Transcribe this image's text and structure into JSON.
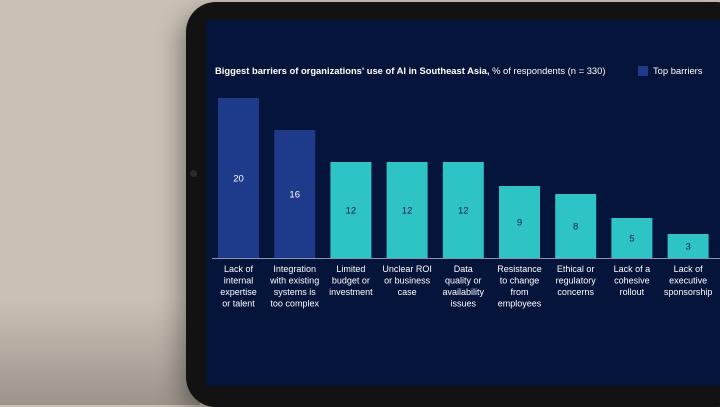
{
  "chart_data": {
    "type": "bar",
    "title_bold": "Biggest barriers of organizations' use of AI in Southeast Asia,",
    "title_rest": " % of respondents (n = 330)",
    "legend": "Top barriers",
    "categories": [
      [
        "Lack of",
        "internal",
        "expertise",
        "or talent"
      ],
      [
        "Integration",
        "with existing",
        "systems is",
        "too complex"
      ],
      [
        "Limited",
        "budget or",
        "investment"
      ],
      [
        "Unclear ROI",
        "or business",
        "case"
      ],
      [
        "Data",
        "quality or",
        "availability",
        "issues"
      ],
      [
        "Resistance",
        "to change",
        "from",
        "employees"
      ],
      [
        "Ethical or",
        "regulatory",
        "concerns"
      ],
      [
        "Lack of a",
        "cohesive",
        "rollout"
      ],
      [
        "Lack of",
        "executive",
        "sponsorship"
      ]
    ],
    "values": [
      20,
      16,
      12,
      12,
      12,
      9,
      8,
      5,
      3
    ],
    "top_barrier": [
      true,
      true,
      false,
      false,
      false,
      false,
      false,
      false,
      false
    ],
    "colors": {
      "top": "#1e3a8a",
      "other": "#2ec4c6",
      "background": "#05143a"
    },
    "ylim": [
      0,
      20
    ]
  }
}
